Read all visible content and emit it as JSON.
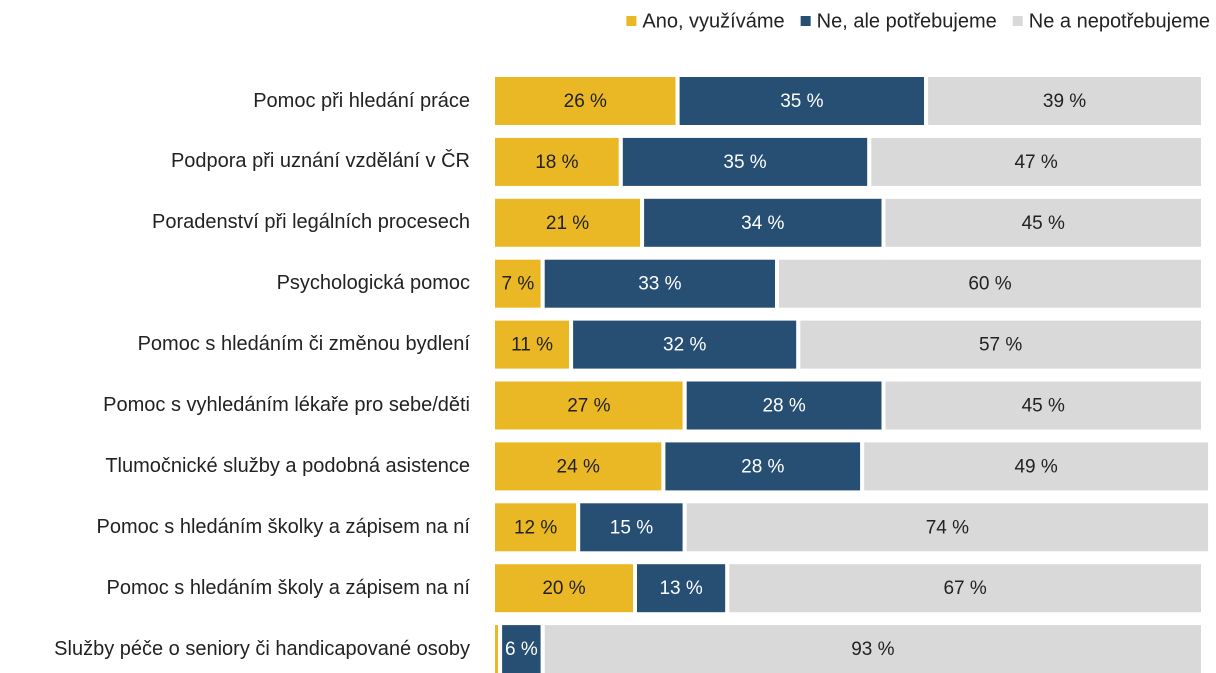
{
  "chart_data": {
    "type": "stacked_bar_horizontal",
    "categories": [
      "Pomoc při hledání práce",
      "Podpora při uznání vzdělání v ČR",
      "Poradenství při legálních procesech",
      "Psychologická pomoc",
      "Pomoc s hledáním či změnou bydlení",
      "Pomoc s vyhledáním lékaře pro sebe/děti",
      "Tlumočnické služby a podobná asistence",
      "Pomoc s hledáním školky a zápisem na ní",
      "Pomoc s hledáním školy a zápisem na ní",
      "Služby péče o seniory či handicapované osoby"
    ],
    "series": [
      {
        "name": "Ano, využíváme",
        "color": "#ebb825",
        "values": [
          26,
          18,
          21,
          7,
          11,
          27,
          24,
          12,
          20,
          1
        ],
        "value_labels": [
          "26 %",
          "18 %",
          "21 %",
          "7 %",
          "11 %",
          "27 %",
          "24 %",
          "12 %",
          "20 %",
          null
        ]
      },
      {
        "name": "Ne, ale potřebujeme",
        "color": "#264f73",
        "values": [
          35,
          35,
          34,
          33,
          32,
          28,
          28,
          15,
          13,
          6
        ],
        "value_labels": [
          "35 %",
          "35 %",
          "34 %",
          "33 %",
          "32 %",
          "28 %",
          "28 %",
          "15 %",
          "13 %",
          "6 %"
        ]
      },
      {
        "name": "Ne a nepotřebujeme",
        "color": "#d9d9d9",
        "values": [
          39,
          47,
          45,
          60,
          57,
          45,
          49,
          74,
          67,
          93
        ],
        "value_labels": [
          "39 %",
          "47 %",
          "45 %",
          "60 %",
          "57 %",
          "45 %",
          "49 %",
          "74 %",
          "67 %",
          "93 %"
        ]
      }
    ],
    "xlim": [
      0,
      100
    ],
    "legend": "top-right"
  }
}
